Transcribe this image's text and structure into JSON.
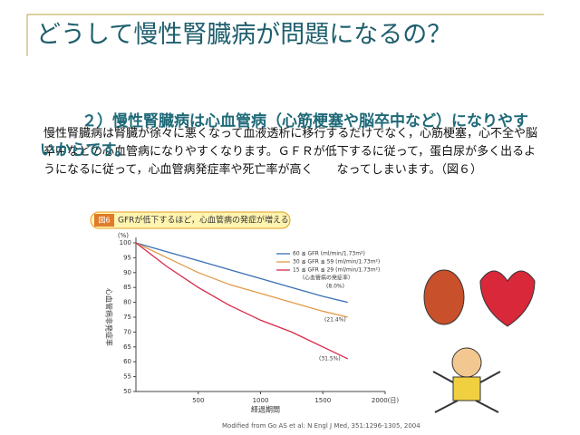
{
  "title": "どうして慢性腎臓病が問題になるの？",
  "heading": "２）慢性腎臓病は心血管病（心筋梗塞や脳卒中など）になりやすいからです。",
  "body": "慢性腎臓病は腎臓が徐々に悪くなって血液透析に移行するだけでなく，心筋梗塞，心不全や脳卒中などの心血管病になりやすくなります。ＧＦＲが低下するに従って，蛋白尿が多く出るようになるに従って，心血管病発症率や死亡率が高く　　なってしまいます。（図６）",
  "figure": {
    "badge": "図6",
    "caption": "GFRが低下するほど，心血管病の発症が増える",
    "source": "Modified from Go AS et al: N Engl J Med, 351:1296-1305, 2004",
    "chart": {
      "type": "line",
      "y_label": "心血管病非発症率",
      "y_unit": "(%)",
      "x_label": "経過期間",
      "x": [
        0,
        250,
        500,
        750,
        1000,
        1250,
        1500,
        1700
      ],
      "series": [
        {
          "name": "60 ≦ GFR (ml/min/1.73m²)",
          "color": "#3a6fb5",
          "values": [
            100,
            97,
            94,
            91,
            88,
            85,
            82,
            80
          ]
        },
        {
          "name": "30 ≦ GFR ≦ 59 (ml/min/1.73m²)",
          "color": "#e39a4a",
          "values": [
            100,
            95,
            90,
            86,
            83,
            80,
            77,
            75
          ]
        },
        {
          "name": "15 ≦ GFR ≦ 29 (ml/min/1.73m²)",
          "color": "#d8284a",
          "values": [
            100,
            92,
            85,
            79,
            74,
            70,
            65,
            61
          ]
        }
      ],
      "legend_note": "（心血管病の発症率）",
      "annotations": [
        "(8.0%)",
        "(21.4%)",
        "(31.5%)"
      ],
      "xlim": [
        0,
        2000
      ],
      "ylim": [
        50,
        100
      ],
      "xticks": [
        500,
        1000,
        1500,
        {
          "value": 2000,
          "label": "2000(日)"
        }
      ],
      "yticks": [
        50,
        55,
        60,
        65,
        70,
        75,
        80,
        85,
        90,
        95,
        100
      ]
    }
  }
}
